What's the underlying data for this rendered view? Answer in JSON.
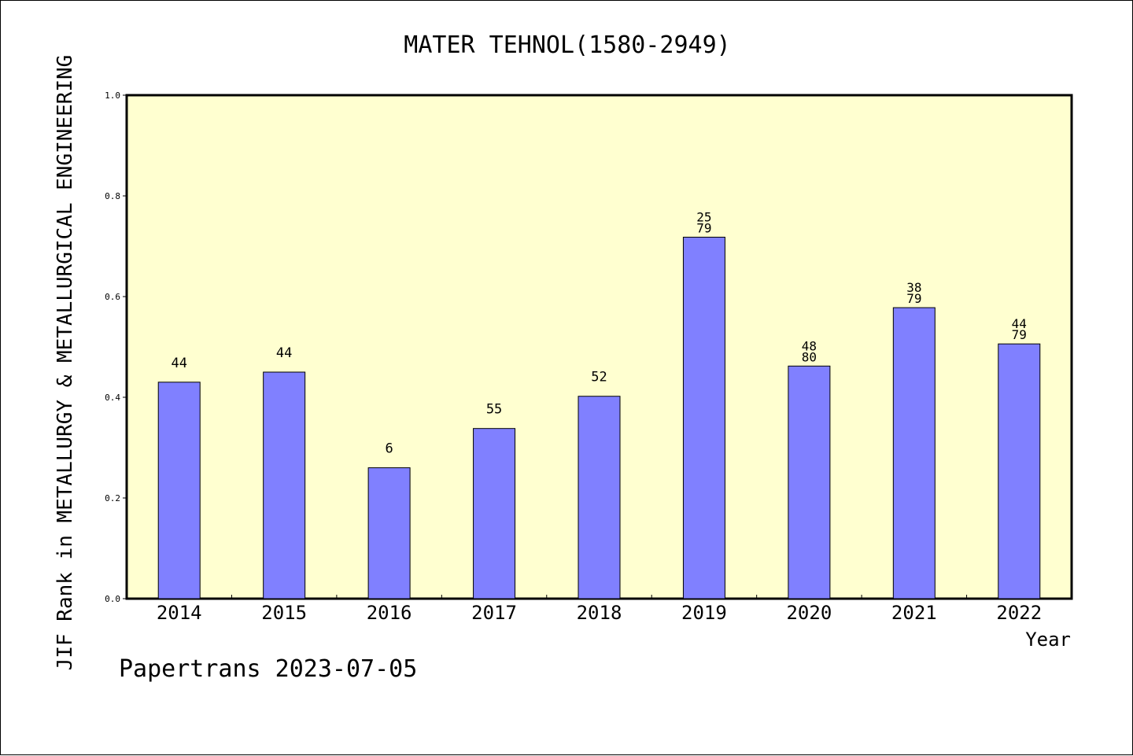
{
  "chart_data": {
    "type": "bar",
    "title": "MATER TEHNOL(1580-2949)",
    "xlabel": "Year",
    "ylabel": "JIF Rank in METALLURGY & METALLURGICAL ENGINEERING",
    "categories": [
      "2014",
      "2015",
      "2016",
      "2017",
      "2018",
      "2019",
      "2020",
      "2021",
      "2022"
    ],
    "values": [
      0.43,
      0.45,
      0.26,
      0.338,
      0.402,
      0.718,
      0.462,
      0.578,
      0.506
    ],
    "bar_labels": [
      [
        "44"
      ],
      [
        "44"
      ],
      [
        "6"
      ],
      [
        "55"
      ],
      [
        "52"
      ],
      [
        "25",
        "79"
      ],
      [
        "48",
        "80"
      ],
      [
        "38",
        "79"
      ],
      [
        "44",
        "79"
      ]
    ],
    "ylim": [
      0,
      1.0
    ],
    "yticks": [
      "0.0",
      "0.2",
      "0.4",
      "0.6",
      "0.8",
      "1.0"
    ],
    "grid": false,
    "colors": {
      "bar": "#8080ff",
      "plot_background": "#ffffd0",
      "axis": "#000000"
    }
  },
  "footer": "Papertrans 2023-07-05"
}
